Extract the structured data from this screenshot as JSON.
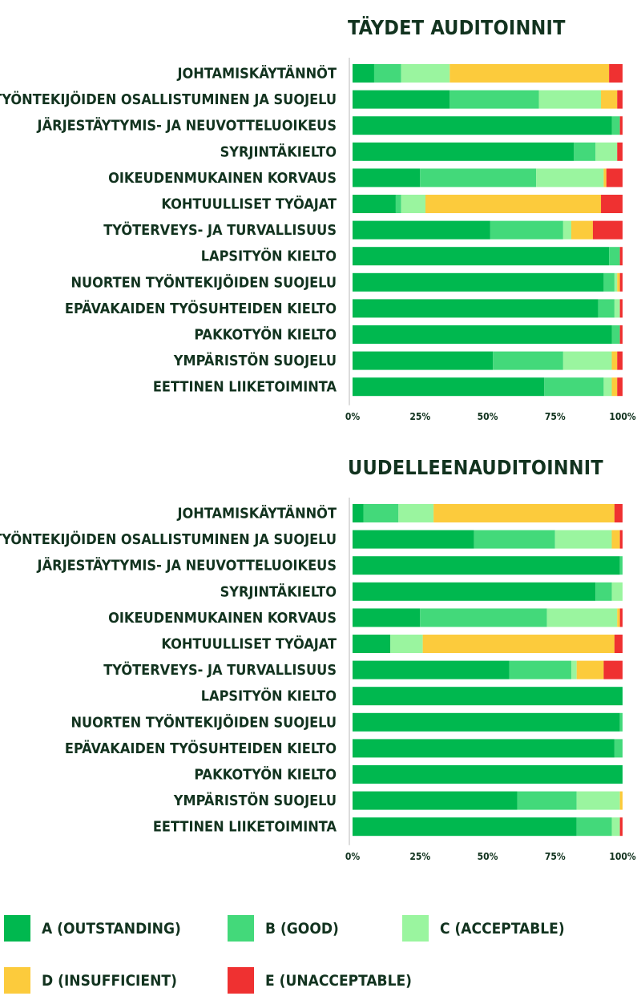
{
  "legend": [
    {
      "label": "A (OUTSTANDING)",
      "color": "#00b84f"
    },
    {
      "label": "B (GOOD)",
      "color": "#43d97a"
    },
    {
      "label": "C (ACCEPTABLE)",
      "color": "#9af59f"
    },
    {
      "label": "D (INSUFFICIENT)",
      "color": "#fccb3c"
    },
    {
      "label": "E (UNACCEPTABLE)",
      "color": "#ef3131"
    }
  ],
  "chart_data": [
    {
      "type": "bar",
      "orientation": "horizontal",
      "stacked": true,
      "title": "TÄYDET AUDITOINNIT",
      "xlim": [
        0,
        100
      ],
      "xticks": [
        "0%",
        "25%",
        "50%",
        "75%",
        "100%"
      ],
      "categories": [
        "JOHTAMISKÄYTÄNNÖT",
        "TYÖNTEKIJÖIDEN OSALLISTUMINEN JA SUOJELU",
        "JÄRJESTÄYTYMIS- JA NEUVOTTELUOIKEUS",
        "SYRJINTÄKIELTO",
        "OIKEUDENMUKAINEN KORVAUS",
        "KOHTUULLISET TYÖAJAT",
        "TYÖTERVEYS- JA TURVALLISUUS",
        "LAPSITYÖN KIELTO",
        "NUORTEN TYÖNTEKIJÖIDEN SUOJELU",
        "EPÄVAKAIDEN TYÖSUHTEIDEN KIELTO",
        "PAKKOTYÖN KIELTO",
        "YMPÄRISTÖN SUOJELU",
        "EETTINEN LIIKETOIMINTA"
      ],
      "series": [
        {
          "name": "A (OUTSTANDING)",
          "values": [
            8,
            36,
            96,
            82,
            25,
            16,
            51,
            95,
            93,
            91,
            96,
            52,
            71
          ]
        },
        {
          "name": "B (GOOD)",
          "values": [
            10,
            33,
            3,
            8,
            43,
            2,
            27,
            4,
            4,
            6,
            3,
            26,
            22
          ]
        },
        {
          "name": "C (ACCEPTABLE)",
          "values": [
            18,
            23,
            0,
            8,
            25,
            9,
            3,
            0,
            1,
            2,
            0,
            18,
            3
          ]
        },
        {
          "name": "D (INSUFFICIENT)",
          "values": [
            59,
            6,
            0,
            0,
            1,
            65,
            8,
            0,
            1,
            0,
            0,
            2,
            2
          ]
        },
        {
          "name": "E (UNACCEPTABLE)",
          "values": [
            5,
            2,
            1,
            2,
            6,
            8,
            11,
            1,
            1,
            1,
            1,
            2,
            2
          ]
        }
      ]
    },
    {
      "type": "bar",
      "orientation": "horizontal",
      "stacked": true,
      "title": "UUDELLEENAUDITOINNIT",
      "xlim": [
        0,
        100
      ],
      "xticks": [
        "0%",
        "25%",
        "50%",
        "75%",
        "100%"
      ],
      "categories": [
        "JOHTAMISKÄYTÄNNÖT",
        "TYÖNTEKIJÖIDEN OSALLISTUMINEN JA SUOJELU",
        "JÄRJESTÄYTYMIS- JA NEUVOTTELUOIKEUS",
        "SYRJINTÄKIELTO",
        "OIKEUDENMUKAINEN KORVAUS",
        "KOHTUULLISET TYÖAJAT",
        "TYÖTERVEYS- JA TURVALLISUUS",
        "LAPSITYÖN KIELTO",
        "NUORTEN TYÖNTEKIJÖIDEN SUOJELU",
        "EPÄVAKAIDEN TYÖSUHTEIDEN KIELTO",
        "PAKKOTYÖN KIELTO",
        "YMPÄRISTÖN SUOJELU",
        "EETTINEN LIIKETOIMINTA"
      ],
      "series": [
        {
          "name": "A (OUTSTANDING)",
          "values": [
            4,
            45,
            99,
            90,
            25,
            14,
            58,
            100,
            99,
            97,
            100,
            61,
            83
          ]
        },
        {
          "name": "B (GOOD)",
          "values": [
            13,
            30,
            1,
            6,
            47,
            0,
            23,
            0,
            1,
            3,
            0,
            22,
            13
          ]
        },
        {
          "name": "C (ACCEPTABLE)",
          "values": [
            13,
            21,
            0,
            4,
            26,
            12,
            2,
            0,
            0,
            0,
            0,
            16,
            3
          ]
        },
        {
          "name": "D (INSUFFICIENT)",
          "values": [
            67,
            3,
            0,
            0,
            1,
            71,
            10,
            0,
            0,
            0,
            0,
            1,
            0
          ]
        },
        {
          "name": "E (UNACCEPTABLE)",
          "values": [
            3,
            1,
            0,
            0,
            1,
            3,
            7,
            0,
            0,
            0,
            0,
            0,
            1
          ]
        }
      ]
    }
  ]
}
